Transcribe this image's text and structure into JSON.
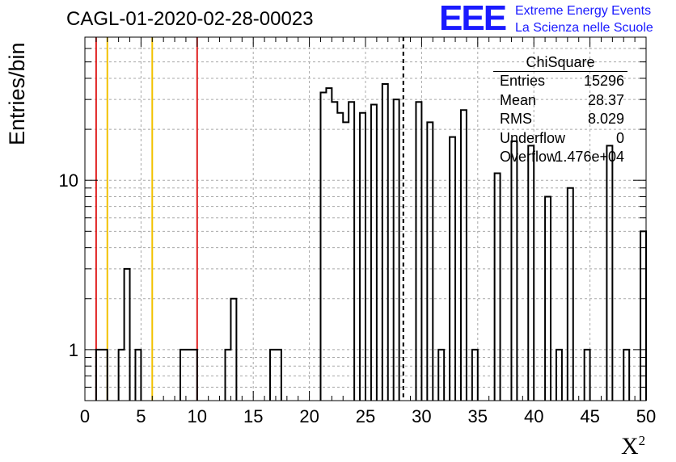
{
  "title": "CAGL-01-2020-02-28-00023",
  "logo": {
    "mark": "EEE",
    "line1": "Extreme Energy Events",
    "line2": "La Scienza nelle Scuole"
  },
  "stats": {
    "name": "ChiSquare",
    "rows": [
      {
        "key": "Entries",
        "value": "15296"
      },
      {
        "key": "Mean",
        "value": "28.37"
      },
      {
        "key": "RMS",
        "value": "8.029"
      },
      {
        "key": "Underflow",
        "value": "0"
      },
      {
        "key": "Overflow",
        "value": "1.476e+04"
      }
    ]
  },
  "colors": {
    "histogram": "#000000",
    "red_line": "#e02020",
    "yellow_line": "#f2c200",
    "grid": "#a8a8a8"
  },
  "chart_data": {
    "type": "histogram",
    "title": "CAGL-01-2020-02-28-00023",
    "xlabel": "X",
    "xlabel_superscript": "2",
    "ylabel": "Entries/bin",
    "xlim": [
      0,
      50
    ],
    "ylim": [
      0.5,
      70
    ],
    "ylog": true,
    "grid": true,
    "bin_width": 0.5,
    "bins": [
      [
        1.0,
        1.5,
        1
      ],
      [
        1.5,
        2.0,
        1
      ],
      [
        3.0,
        3.5,
        1
      ],
      [
        3.5,
        4.0,
        3
      ],
      [
        4.5,
        5.0,
        1
      ],
      [
        8.5,
        9.0,
        1
      ],
      [
        9.0,
        9.5,
        1
      ],
      [
        9.5,
        10.0,
        1
      ],
      [
        12.5,
        13.0,
        1
      ],
      [
        13.0,
        13.5,
        2
      ],
      [
        16.5,
        17.0,
        1
      ],
      [
        17.0,
        17.5,
        1
      ],
      [
        21.0,
        21.5,
        33
      ],
      [
        21.5,
        22.0,
        35
      ],
      [
        22.0,
        22.5,
        29
      ],
      [
        22.5,
        23.0,
        25
      ],
      [
        23.0,
        23.5,
        22
      ],
      [
        23.5,
        24.0,
        29
      ],
      [
        24.5,
        25.0,
        25
      ],
      [
        25.5,
        26.0,
        28
      ],
      [
        26.5,
        27.0,
        37
      ],
      [
        27.5,
        28.0,
        30
      ],
      [
        29.5,
        30.0,
        29
      ],
      [
        30.5,
        31.0,
        22
      ],
      [
        31.5,
        32.0,
        1
      ],
      [
        32.5,
        33.0,
        18
      ],
      [
        33.5,
        34.0,
        26
      ],
      [
        34.5,
        35.0,
        1
      ],
      [
        36.5,
        37.0,
        11
      ],
      [
        38.0,
        38.5,
        17
      ],
      [
        39.5,
        40.0,
        16
      ],
      [
        41.0,
        41.5,
        8
      ],
      [
        42.0,
        42.5,
        1
      ],
      [
        43.0,
        43.5,
        9
      ],
      [
        44.5,
        45.0,
        1
      ],
      [
        46.5,
        47.0,
        16
      ],
      [
        48.0,
        48.5,
        1
      ],
      [
        49.5,
        50.0,
        5
      ]
    ],
    "vertical_lines": [
      {
        "x": 1,
        "color": "red"
      },
      {
        "x": 2,
        "color": "yellow"
      },
      {
        "x": 6,
        "color": "yellow"
      },
      {
        "x": 10,
        "color": "red"
      },
      {
        "x": 28.37,
        "color": "black",
        "style": "dashed"
      }
    ],
    "x_ticks": [
      0,
      5,
      10,
      15,
      20,
      25,
      30,
      35,
      40,
      45,
      50
    ],
    "y_tick_labels": [
      1,
      10
    ]
  }
}
